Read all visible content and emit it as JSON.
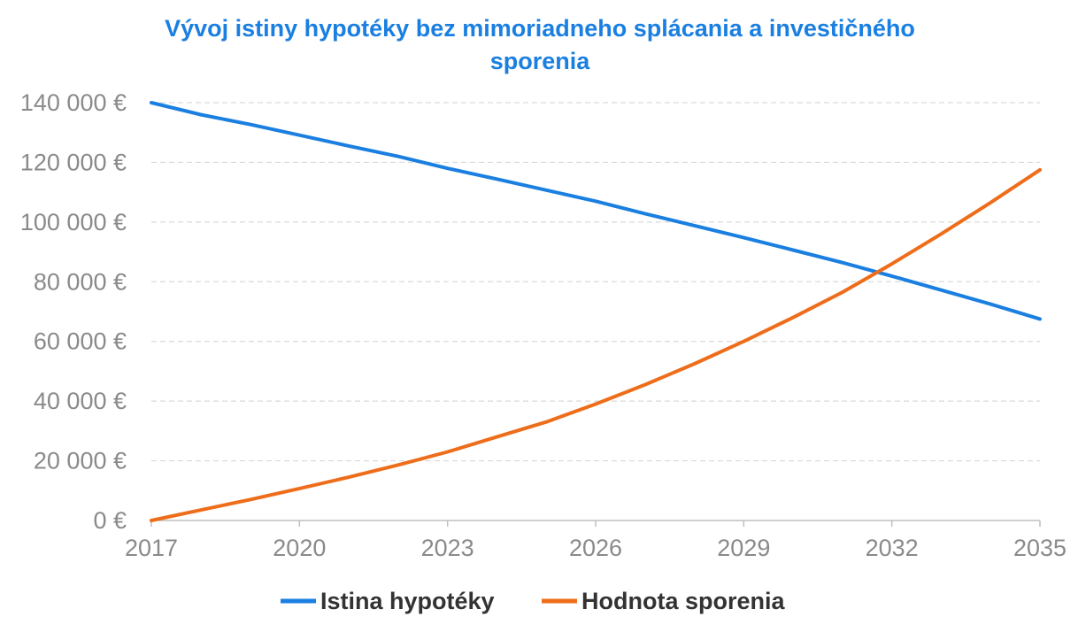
{
  "chart_data": {
    "type": "line",
    "title": "Vývoj istiny hypotéky bez mimoriadneho splácania a investičného sporenia",
    "xlabel": "",
    "ylabel": "",
    "xlim": [
      2017,
      2035
    ],
    "ylim": [
      0,
      140000
    ],
    "x_ticks": [
      {
        "value": 2017,
        "label": "2017"
      },
      {
        "value": 2020,
        "label": "2020"
      },
      {
        "value": 2023,
        "label": "2023"
      },
      {
        "value": 2026,
        "label": "2026"
      },
      {
        "value": 2029,
        "label": "2029"
      },
      {
        "value": 2032,
        "label": "2032"
      },
      {
        "value": 2035,
        "label": "2035"
      }
    ],
    "y_ticks": [
      {
        "value": 0,
        "label": "0 €"
      },
      {
        "value": 20000,
        "label": "20 000 €"
      },
      {
        "value": 40000,
        "label": "40 000 €"
      },
      {
        "value": 60000,
        "label": "60 000 €"
      },
      {
        "value": 80000,
        "label": "80 000 €"
      },
      {
        "value": 100000,
        "label": "100 000 €"
      },
      {
        "value": 120000,
        "label": "120 000 €"
      },
      {
        "value": 140000,
        "label": "140 000 €"
      }
    ],
    "grid": "horizontal-dashed",
    "legend_position": "bottom",
    "x": [
      2017,
      2018,
      2019,
      2020,
      2021,
      2022,
      2023,
      2024,
      2025,
      2026,
      2027,
      2028,
      2029,
      2030,
      2031,
      2032,
      2033,
      2034,
      2035
    ],
    "series": [
      {
        "name": "Istina hypotéky",
        "color": "#1a7fe0",
        "values": [
          140000,
          136000,
          132700,
          129100,
          125500,
          122000,
          118000,
          114400,
          110700,
          107000,
          102800,
          98800,
          94800,
          90600,
          86400,
          81900,
          77200,
          72500,
          67500
        ]
      },
      {
        "name": "Hodnota sporenia",
        "color": "#ee6d1a",
        "values": [
          0,
          3500,
          7000,
          10700,
          14500,
          18600,
          23000,
          28000,
          33000,
          39000,
          45500,
          52500,
          60000,
          68000,
          76500,
          86000,
          96000,
          106500,
          117500
        ]
      }
    ]
  }
}
